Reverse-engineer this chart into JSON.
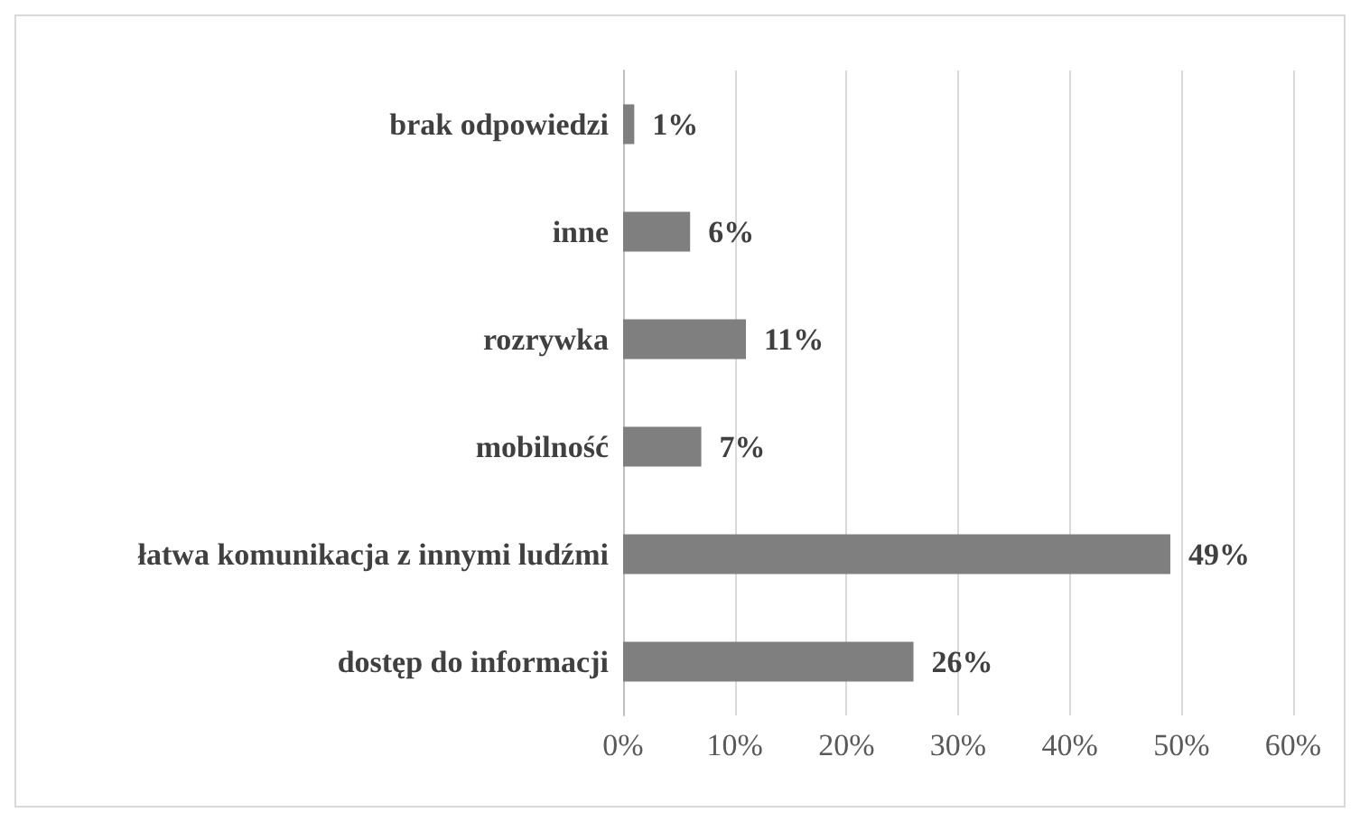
{
  "chart_data": {
    "type": "bar",
    "orientation": "horizontal",
    "categories": [
      "brak odpowiedzi",
      "inne",
      "rozrywka",
      "mobilność",
      "łatwa komunikacja z innymi ludźmi",
      "dostęp do informacji"
    ],
    "values": [
      1,
      6,
      11,
      7,
      49,
      26
    ],
    "value_labels": [
      "1%",
      "6%",
      "11%",
      "7%",
      "49%",
      "26%"
    ],
    "color": "#7f7f7f",
    "xlim": [
      0,
      60
    ],
    "xticks": [
      {
        "value": 0,
        "label": "0%"
      },
      {
        "value": 10,
        "label": "10%"
      },
      {
        "value": 20,
        "label": "20%"
      },
      {
        "value": 30,
        "label": "30%"
      },
      {
        "value": 40,
        "label": "40%"
      },
      {
        "value": 50,
        "label": "50%"
      },
      {
        "value": 60,
        "label": "60%"
      }
    ],
    "grid": "x"
  }
}
